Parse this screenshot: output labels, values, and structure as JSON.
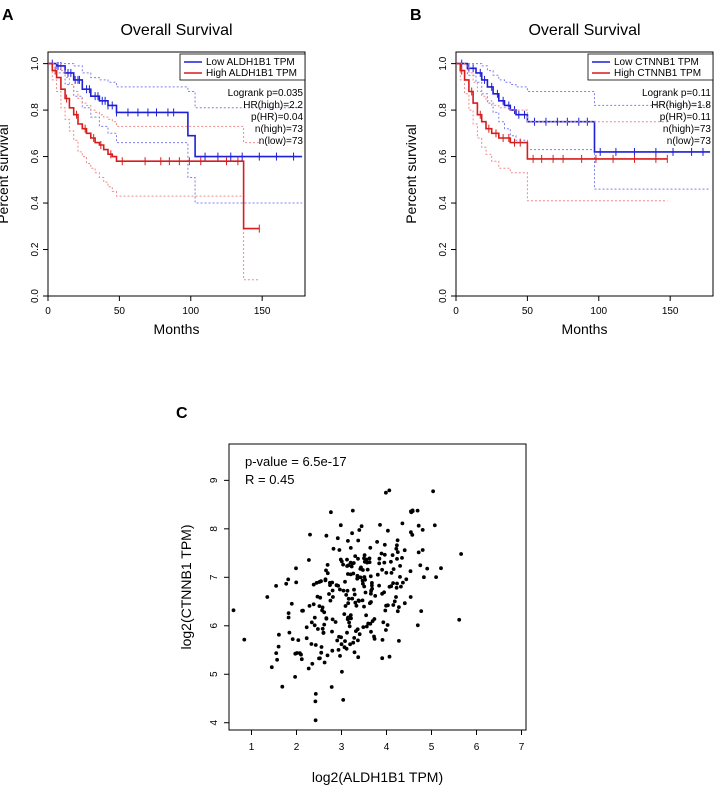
{
  "colors": {
    "low": "#1f1fd6",
    "high": "#d91c1c",
    "low_ci": "#7f7ff0",
    "high_ci": "#ef8a8a",
    "axis": "#000000",
    "point": "#000000"
  },
  "panels": {
    "A": {
      "letter": "A",
      "title": "Overall Survival",
      "xlabel": "Months",
      "ylabel": "Percent survival",
      "xticks": [
        0,
        50,
        100,
        150
      ],
      "yticks": [
        0.0,
        0.2,
        0.4,
        0.6,
        0.8,
        1.0
      ],
      "ytick_labels": [
        "0.0",
        "0.2",
        "0.4",
        "0.6",
        "0.8",
        "1.0"
      ],
      "legend": [
        "Low ALDH1B1 TPM",
        "High ALDH1B1 TPM"
      ],
      "stats": [
        "Logrank p=0.035",
        "HR(high)=2.2",
        "p(HR)=0.04",
        "n(high)=73",
        "n(low)=73"
      ]
    },
    "B": {
      "letter": "B",
      "title": "Overall Survival",
      "xlabel": "Months",
      "ylabel": "Percent survival",
      "xticks": [
        0,
        50,
        100,
        150
      ],
      "yticks": [
        0.0,
        0.2,
        0.4,
        0.6,
        0.8,
        1.0
      ],
      "ytick_labels": [
        "0.0",
        "0.2",
        "0.4",
        "0.6",
        "0.8",
        "1.0"
      ],
      "legend": [
        "Low CTNNB1 TPM",
        "High CTNNB1 TPM"
      ],
      "stats": [
        "Logrank p=0.11",
        "HR(high)=1.8",
        "p(HR)=0.11",
        "n(high)=73",
        "n(low)=73"
      ]
    },
    "C": {
      "letter": "C",
      "xlabel": "log2(ALDH1B1 TPM)",
      "ylabel": "log2(CTNNB1 TPM)",
      "xticks": [
        1,
        2,
        3,
        4,
        5,
        6,
        7
      ],
      "yticks": [
        4,
        5,
        6,
        7,
        8,
        9
      ],
      "annotation": [
        "p-value = 6.5e-17",
        "R = 0.45"
      ]
    }
  },
  "chart_data": [
    {
      "type": "line",
      "title": "Overall Survival",
      "xlabel": "Months",
      "ylabel": "Percent survival",
      "xlim": [
        0,
        180
      ],
      "ylim": [
        0,
        1.05
      ],
      "series": [
        {
          "name": "Low ALDH1B1 TPM",
          "x": [
            0,
            6,
            12,
            18,
            24,
            30,
            36,
            42,
            48,
            98,
            103,
            178
          ],
          "y": [
            1.0,
            0.99,
            0.96,
            0.93,
            0.89,
            0.86,
            0.84,
            0.82,
            0.79,
            0.69,
            0.6,
            0.6
          ],
          "ci_upper": [
            1.0,
            1.0,
            1.0,
            0.99,
            0.96,
            0.94,
            0.93,
            0.92,
            0.9,
            0.88,
            0.81,
            0.81
          ],
          "ci_lower": [
            1.0,
            0.96,
            0.91,
            0.86,
            0.81,
            0.77,
            0.73,
            0.7,
            0.66,
            0.51,
            0.4,
            0.4
          ],
          "censor_x": [
            3,
            7,
            9,
            14,
            16,
            19,
            21,
            22,
            27,
            29,
            33,
            35,
            38,
            40,
            42,
            45,
            48,
            56,
            63,
            70,
            76,
            84,
            88,
            110,
            119,
            128,
            136,
            148,
            160,
            172
          ]
        },
        {
          "name": "High ALDH1B1 TPM",
          "x": [
            0,
            3,
            6,
            9,
            12,
            15,
            18,
            21,
            24,
            27,
            30,
            33,
            36,
            39,
            42,
            45,
            48,
            137,
            148
          ],
          "y": [
            1.0,
            0.97,
            0.94,
            0.89,
            0.85,
            0.81,
            0.78,
            0.74,
            0.72,
            0.7,
            0.68,
            0.66,
            0.65,
            0.63,
            0.61,
            0.6,
            0.58,
            0.29,
            0.29
          ],
          "ci_upper": [
            1.0,
            1.0,
            1.0,
            0.97,
            0.94,
            0.91,
            0.88,
            0.85,
            0.83,
            0.82,
            0.8,
            0.79,
            0.78,
            0.77,
            0.76,
            0.75,
            0.73,
            0.66,
            0.66
          ],
          "ci_lower": [
            1.0,
            0.93,
            0.88,
            0.81,
            0.76,
            0.71,
            0.67,
            0.62,
            0.6,
            0.57,
            0.55,
            0.53,
            0.51,
            0.49,
            0.47,
            0.45,
            0.43,
            0.07,
            0.07
          ],
          "censor_x": [
            5,
            13,
            20,
            26,
            32,
            37,
            44,
            52,
            68,
            79,
            85,
            92,
            99,
            107,
            125,
            133,
            148
          ]
        }
      ]
    },
    {
      "type": "line",
      "title": "Overall Survival",
      "xlabel": "Months",
      "ylabel": "Percent survival",
      "xlim": [
        0,
        180
      ],
      "ylim": [
        0,
        1.05
      ],
      "series": [
        {
          "name": "Low CTNNB1 TPM",
          "x": [
            0,
            8,
            14,
            18,
            22,
            26,
            30,
            34,
            38,
            42,
            50,
            97,
            178
          ],
          "y": [
            1.0,
            0.98,
            0.96,
            0.93,
            0.9,
            0.87,
            0.84,
            0.82,
            0.8,
            0.78,
            0.75,
            0.62,
            0.62
          ],
          "ci_upper": [
            1.0,
            1.0,
            1.0,
            0.99,
            0.97,
            0.95,
            0.93,
            0.92,
            0.91,
            0.9,
            0.88,
            0.82,
            0.82
          ],
          "ci_lower": [
            1.0,
            0.95,
            0.92,
            0.87,
            0.83,
            0.79,
            0.75,
            0.72,
            0.69,
            0.67,
            0.63,
            0.46,
            0.46
          ],
          "censor_x": [
            4,
            9,
            12,
            17,
            20,
            25,
            29,
            33,
            37,
            41,
            44,
            48,
            55,
            63,
            71,
            78,
            86,
            92,
            101,
            112,
            125,
            140,
            152,
            165,
            173
          ]
        },
        {
          "name": "High CTNNB1 TPM",
          "x": [
            0,
            3,
            6,
            9,
            12,
            15,
            18,
            21,
            25,
            30,
            38,
            48,
            50,
            148
          ],
          "y": [
            1.0,
            0.97,
            0.93,
            0.88,
            0.83,
            0.78,
            0.75,
            0.72,
            0.7,
            0.68,
            0.66,
            0.66,
            0.59,
            0.59
          ],
          "ci_upper": [
            1.0,
            1.0,
            0.99,
            0.96,
            0.92,
            0.88,
            0.86,
            0.84,
            0.82,
            0.81,
            0.8,
            0.8,
            0.75,
            0.75
          ],
          "ci_lower": [
            1.0,
            0.93,
            0.87,
            0.8,
            0.74,
            0.68,
            0.64,
            0.61,
            0.58,
            0.55,
            0.53,
            0.53,
            0.41,
            0.41
          ],
          "censor_x": [
            4,
            11,
            17,
            23,
            28,
            33,
            37,
            41,
            45,
            54,
            60,
            68,
            75,
            88,
            98,
            110,
            125,
            140,
            148
          ]
        }
      ]
    },
    {
      "type": "scatter",
      "xlabel": "log2(ALDH1B1 TPM)",
      "ylabel": "log2(CTNNB1 TPM)",
      "xlim": [
        0.5,
        7.1
      ],
      "ylim": [
        3.85,
        9.75
      ],
      "annotations": [
        "p-value = 6.5e-17",
        "R = 0.45"
      ],
      "points_count": 280,
      "approx_trend": {
        "slope": 0.45,
        "intercept": 5.15,
        "x_mean": 3.3,
        "x_sd": 0.85
      }
    }
  ]
}
